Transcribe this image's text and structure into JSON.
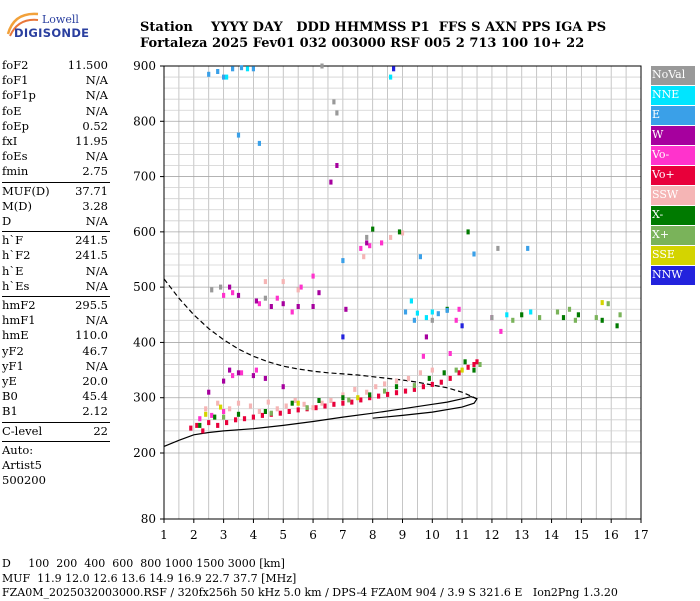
{
  "logo": {
    "line1": "Lowell",
    "line2": "DIGISONDE"
  },
  "header": {
    "labels": "Station    YYYY DAY   DDD HHMMSS P1  FFS S AXN PPS IGA PS",
    "values": "Fortaleza 2025 Fev01 032 003000 RSF 005 2 713 100 10+ 22"
  },
  "params": [
    {
      "k": "foF2",
      "v": "11.500"
    },
    {
      "k": "foF1",
      "v": "N/A"
    },
    {
      "k": "foF1p",
      "v": "N/A"
    },
    {
      "k": "foE",
      "v": "N/A"
    },
    {
      "k": "foEp",
      "v": "0.52"
    },
    {
      "k": "fxI",
      "v": "11.95"
    },
    {
      "k": "foEs",
      "v": "N/A"
    },
    {
      "k": "fmin",
      "v": "2.75"
    },
    {
      "sep": true
    },
    {
      "k": "MUF(D)",
      "v": "37.71"
    },
    {
      "k": "M(D)",
      "v": "3.28"
    },
    {
      "k": "D",
      "v": "N/A"
    },
    {
      "sep": true
    },
    {
      "k": "h`F",
      "v": "241.5"
    },
    {
      "k": "h`F2",
      "v": "241.5"
    },
    {
      "k": "h`E",
      "v": "N/A"
    },
    {
      "k": "h`Es",
      "v": "N/A"
    },
    {
      "sep": true
    },
    {
      "k": "hmF2",
      "v": "295.5"
    },
    {
      "k": "hmF1",
      "v": "N/A"
    },
    {
      "k": "hmE",
      "v": "110.0"
    },
    {
      "k": "yF2",
      "v": "46.7"
    },
    {
      "k": "yF1",
      "v": "N/A"
    },
    {
      "k": "yE",
      "v": "20.0"
    },
    {
      "k": "B0",
      "v": "45.4"
    },
    {
      "k": "B1",
      "v": "2.12"
    },
    {
      "sep": true
    },
    {
      "k": "C-level",
      "v": "22"
    },
    {
      "sep": true
    },
    {
      "text": "Auto:"
    },
    {
      "text": "Artist5"
    },
    {
      "text": "500200"
    }
  ],
  "legend": [
    {
      "label": "NoVal",
      "color": "#999999"
    },
    {
      "label": "NNE",
      "color": "#00e5ff"
    },
    {
      "label": "E",
      "color": "#3aa0e8"
    },
    {
      "label": "W",
      "color": "#a6009e"
    },
    {
      "label": "Vo-",
      "color": "#ff33cc"
    },
    {
      "label": "Vo+",
      "color": "#e8003a"
    },
    {
      "label": "SSW",
      "color": "#f5b5b5"
    },
    {
      "label": "X-",
      "color": "#007a00"
    },
    {
      "label": "X+",
      "color": "#7ab35a"
    },
    {
      "label": "SSE",
      "color": "#d4d400"
    },
    {
      "label": "NNW",
      "color": "#2222dd"
    }
  ],
  "footer": {
    "line1": "D     100  200  400  600  800 1000 1500 3000 [km]",
    "line2": "MUF  11.9 12.0 12.6 13.6 14.9 16.9 22.7 37.7 [MHz]",
    "line3": "FZA0M_2025032003000.RSF / 320fx256h 50 kHz 5.0 km / DPS-4 FZA0M 904 / 3.9 S 321.6 E   Ion2Png 1.3.20"
  },
  "chart_data": {
    "type": "scatter",
    "xlim": [
      1,
      17
    ],
    "ylim": [
      80,
      900
    ],
    "xticks": [
      1,
      2,
      3,
      4,
      5,
      6,
      7,
      8,
      9,
      10,
      11,
      12,
      13,
      14,
      15,
      16,
      17
    ],
    "yticks": [
      80,
      200,
      300,
      400,
      500,
      600,
      700,
      800,
      900
    ],
    "grid": true,
    "series": [
      {
        "color": "#e8003a",
        "points": [
          [
            1.9,
            245
          ],
          [
            2.1,
            250
          ],
          [
            2.3,
            240
          ],
          [
            2.5,
            255
          ],
          [
            2.8,
            250
          ],
          [
            3.1,
            255
          ],
          [
            3.4,
            260
          ],
          [
            3.7,
            262
          ],
          [
            4.0,
            265
          ],
          [
            4.3,
            268
          ],
          [
            4.6,
            270
          ],
          [
            4.9,
            272
          ],
          [
            5.2,
            275
          ],
          [
            5.5,
            278
          ],
          [
            5.8,
            280
          ],
          [
            6.1,
            282
          ],
          [
            6.4,
            285
          ],
          [
            6.7,
            288
          ],
          [
            7.0,
            290
          ],
          [
            7.3,
            292
          ],
          [
            7.6,
            296
          ],
          [
            7.9,
            300
          ],
          [
            8.2,
            303
          ],
          [
            8.5,
            306
          ],
          [
            8.8,
            309
          ],
          [
            9.1,
            312
          ],
          [
            9.4,
            315
          ],
          [
            9.7,
            320
          ],
          [
            10.0,
            324
          ],
          [
            10.3,
            328
          ],
          [
            10.6,
            335
          ],
          [
            10.9,
            345
          ],
          [
            11.2,
            355
          ],
          [
            11.4,
            360
          ],
          [
            11.5,
            365
          ]
        ]
      },
      {
        "color": "#ff33cc",
        "points": [
          [
            2.2,
            262
          ],
          [
            2.6,
            268
          ],
          [
            3.0,
            275
          ],
          [
            3.3,
            340
          ],
          [
            3.6,
            345
          ],
          [
            4.1,
            350
          ],
          [
            3.0,
            485
          ],
          [
            3.3,
            490
          ],
          [
            4.2,
            470
          ],
          [
            4.8,
            480
          ],
          [
            5.3,
            455
          ],
          [
            5.6,
            500
          ],
          [
            6.0,
            520
          ],
          [
            7.6,
            570
          ],
          [
            7.9,
            575
          ],
          [
            8.3,
            580
          ],
          [
            9.7,
            375
          ],
          [
            10.6,
            380
          ],
          [
            10.8,
            440
          ],
          [
            10.9,
            460
          ],
          [
            12.0,
            445
          ],
          [
            12.3,
            420
          ]
        ]
      },
      {
        "color": "#f5b5b5",
        "points": [
          [
            2.4,
            280
          ],
          [
            2.8,
            290
          ],
          [
            3.2,
            280
          ],
          [
            3.5,
            290
          ],
          [
            3.9,
            285
          ],
          [
            4.2,
            275
          ],
          [
            4.5,
            292
          ],
          [
            4.8,
            280
          ],
          [
            5.1,
            285
          ],
          [
            5.4,
            295
          ],
          [
            5.7,
            288
          ],
          [
            6.0,
            282
          ],
          [
            6.3,
            290
          ],
          [
            6.6,
            295
          ],
          [
            7.0,
            305
          ],
          [
            7.4,
            315
          ],
          [
            7.8,
            310
          ],
          [
            8.1,
            320
          ],
          [
            8.4,
            325
          ],
          [
            8.8,
            330
          ],
          [
            9.2,
            335
          ],
          [
            9.6,
            345
          ],
          [
            10.0,
            350
          ],
          [
            4.4,
            510
          ],
          [
            5.0,
            510
          ],
          [
            5.5,
            495
          ],
          [
            7.7,
            555
          ],
          [
            8.6,
            590
          ],
          [
            9.0,
            598
          ]
        ]
      },
      {
        "color": "#a6009e",
        "points": [
          [
            2.5,
            310
          ],
          [
            3.0,
            330
          ],
          [
            3.2,
            350
          ],
          [
            3.5,
            345
          ],
          [
            4.0,
            340
          ],
          [
            4.4,
            335
          ],
          [
            5.0,
            320
          ],
          [
            3.2,
            500
          ],
          [
            3.5,
            485
          ],
          [
            4.1,
            475
          ],
          [
            4.6,
            465
          ],
          [
            5.0,
            470
          ],
          [
            5.5,
            465
          ],
          [
            6.0,
            465
          ],
          [
            6.2,
            490
          ],
          [
            6.6,
            690
          ],
          [
            6.8,
            720
          ],
          [
            7.1,
            460
          ],
          [
            7.8,
            580
          ],
          [
            9.8,
            410
          ]
        ]
      },
      {
        "color": "#007a00",
        "points": [
          [
            2.2,
            250
          ],
          [
            2.7,
            265
          ],
          [
            3.5,
            270
          ],
          [
            4.4,
            275
          ],
          [
            5.3,
            290
          ],
          [
            6.2,
            295
          ],
          [
            7.0,
            300
          ],
          [
            7.9,
            305
          ],
          [
            8.8,
            320
          ],
          [
            9.9,
            335
          ],
          [
            10.4,
            345
          ],
          [
            11.1,
            365
          ],
          [
            11.4,
            350
          ],
          [
            8.0,
            605
          ],
          [
            8.9,
            600
          ],
          [
            10.5,
            460
          ],
          [
            11.2,
            600
          ],
          [
            13.0,
            450
          ],
          [
            14.4,
            445
          ],
          [
            14.9,
            450
          ],
          [
            15.7,
            440
          ],
          [
            16.2,
            430
          ]
        ]
      },
      {
        "color": "#7ab35a",
        "points": [
          [
            3.0,
            265
          ],
          [
            4.6,
            272
          ],
          [
            5.8,
            282
          ],
          [
            7.2,
            296
          ],
          [
            8.4,
            312
          ],
          [
            9.4,
            322
          ],
          [
            10.8,
            350
          ],
          [
            11.6,
            360
          ],
          [
            12.7,
            440
          ],
          [
            13.6,
            445
          ],
          [
            14.2,
            455
          ],
          [
            14.8,
            440
          ],
          [
            15.5,
            445
          ],
          [
            16.3,
            450
          ],
          [
            15.9,
            470
          ],
          [
            14.6,
            460
          ]
        ]
      },
      {
        "color": "#3aa0e8",
        "points": [
          [
            2.5,
            885
          ],
          [
            2.8,
            890
          ],
          [
            3.0,
            880
          ],
          [
            3.3,
            895
          ],
          [
            3.6,
            897
          ],
          [
            4.0,
            895
          ],
          [
            3.5,
            775
          ],
          [
            4.2,
            760
          ],
          [
            9.6,
            555
          ],
          [
            11.4,
            560
          ],
          [
            13.2,
            570
          ],
          [
            7.0,
            548
          ],
          [
            10.2,
            452
          ],
          [
            10.5,
            458
          ],
          [
            9.1,
            455
          ],
          [
            9.4,
            440
          ]
        ]
      },
      {
        "color": "#00e5ff",
        "points": [
          [
            3.1,
            880
          ],
          [
            3.8,
            895
          ],
          [
            9.5,
            453
          ],
          [
            10.0,
            455
          ],
          [
            12.5,
            450
          ],
          [
            13.3,
            455
          ],
          [
            9.3,
            475
          ],
          [
            8.6,
            880
          ],
          [
            9.8,
            445
          ]
        ]
      },
      {
        "color": "#d4d400",
        "points": [
          [
            2.4,
            270
          ],
          [
            2.9,
            283
          ],
          [
            5.5,
            290
          ],
          [
            7.5,
            300
          ],
          [
            11.0,
            350
          ],
          [
            15.7,
            472
          ]
        ]
      },
      {
        "color": "#999999",
        "points": [
          [
            6.3,
            900
          ],
          [
            6.7,
            835
          ],
          [
            6.8,
            815
          ],
          [
            7.8,
            590
          ],
          [
            2.6,
            495
          ],
          [
            2.9,
            500
          ],
          [
            4.4,
            480
          ],
          [
            10.0,
            440
          ],
          [
            12.2,
            570
          ],
          [
            12.0,
            445
          ]
        ]
      },
      {
        "color": "#2222dd",
        "points": [
          [
            7.0,
            410
          ],
          [
            8.7,
            895
          ],
          [
            11.0,
            430
          ]
        ]
      }
    ],
    "traces": [
      {
        "style": "solid",
        "points": [
          [
            1.0,
            212
          ],
          [
            1.5,
            223
          ],
          [
            2.0,
            233
          ],
          [
            2.5,
            237
          ],
          [
            3.0,
            240
          ],
          [
            4.0,
            244
          ],
          [
            5.0,
            250
          ],
          [
            6.0,
            257
          ],
          [
            7.0,
            265
          ],
          [
            8.0,
            272
          ],
          [
            9.0,
            280
          ],
          [
            10.0,
            288
          ],
          [
            10.5,
            292
          ],
          [
            11.0,
            298
          ],
          [
            11.3,
            302
          ],
          [
            11.5,
            298
          ],
          [
            11.4,
            290
          ],
          [
            11.0,
            283
          ],
          [
            10.0,
            274
          ],
          [
            9.0,
            268
          ],
          [
            8.0,
            263
          ]
        ]
      },
      {
        "style": "dashed",
        "points": [
          [
            1.0,
            515
          ],
          [
            1.5,
            480
          ],
          [
            2.0,
            450
          ],
          [
            2.5,
            425
          ],
          [
            3.0,
            405
          ],
          [
            3.5,
            388
          ],
          [
            4.0,
            375
          ],
          [
            4.5,
            365
          ],
          [
            5.0,
            357
          ],
          [
            5.5,
            352
          ],
          [
            6.0,
            348
          ],
          [
            6.5,
            345
          ],
          [
            7.0,
            343
          ],
          [
            7.5,
            341
          ],
          [
            8.0,
            338
          ],
          [
            8.5,
            335
          ],
          [
            9.0,
            332
          ],
          [
            9.5,
            328
          ],
          [
            10.0,
            323
          ],
          [
            10.5,
            318
          ],
          [
            11.0,
            310
          ],
          [
            11.3,
            303
          ],
          [
            11.5,
            298
          ]
        ]
      }
    ]
  }
}
